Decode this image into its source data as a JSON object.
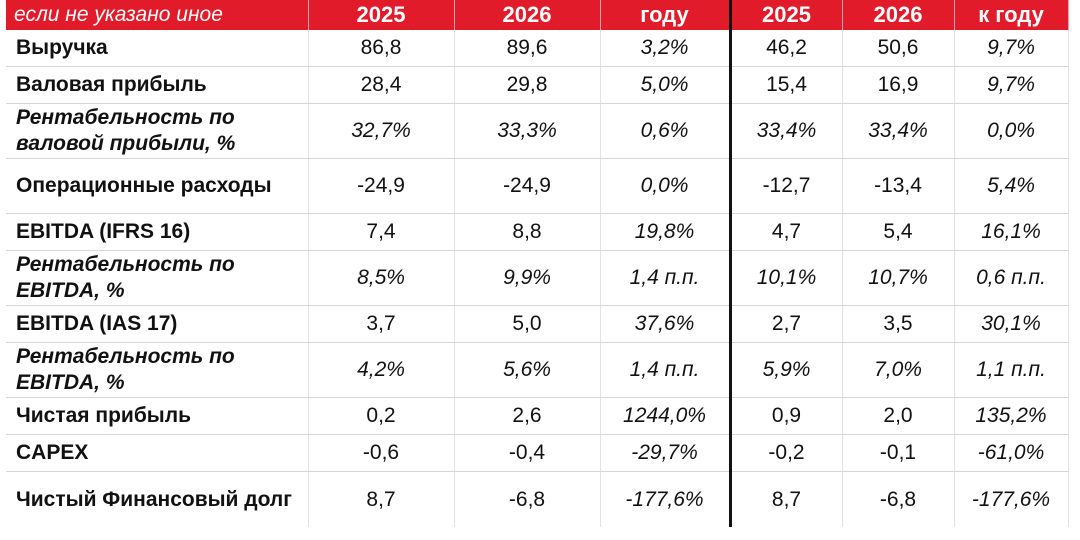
{
  "header": {
    "label": "если не указано иное",
    "columns": [
      "2025",
      "2026",
      "году",
      "2025",
      "2026",
      "к году"
    ]
  },
  "rows": [
    {
      "label": "Выручка",
      "values": [
        "86,8",
        "89,6",
        "3,2%",
        "46,2",
        "50,6",
        "9,7%"
      ]
    },
    {
      "label": "Валовая прибыль",
      "values": [
        "28,4",
        "29,8",
        "5,0%",
        "15,4",
        "16,9",
        "9,7%"
      ]
    },
    {
      "label": "Рентабельность по валовой прибыли, %",
      "values": [
        "32,7%",
        "33,3%",
        "0,6%",
        "33,4%",
        "33,4%",
        "0,0%"
      ]
    },
    {
      "label": "Операционные расходы",
      "values": [
        "-24,9",
        "-24,9",
        "0,0%",
        "-12,7",
        "-13,4",
        "5,4%"
      ]
    },
    {
      "label": "EBITDA (IFRS 16)",
      "values": [
        "7,4",
        "8,8",
        "19,8%",
        "4,7",
        "5,4",
        "16,1%"
      ]
    },
    {
      "label": "Рентабельность по EBITDA, %",
      "values": [
        "8,5%",
        "9,9%",
        "1,4 п.п.",
        "10,1%",
        "10,7%",
        "0,6 п.п."
      ]
    },
    {
      "label": "EBITDA (IAS 17)",
      "values": [
        "3,7",
        "5,0",
        "37,6%",
        "2,7",
        "3,5",
        "30,1%"
      ]
    },
    {
      "label": "Рентабельность по EBITDA, %",
      "values": [
        "4,2%",
        "5,6%",
        "1,4 п.п.",
        "5,9%",
        "7,0%",
        "1,1 п.п."
      ]
    },
    {
      "label": "Чистая прибыль",
      "values": [
        "0,2",
        "2,6",
        "1244,0%",
        "0,9",
        "2,0",
        "135,2%"
      ]
    },
    {
      "label": "CAPEX",
      "values": [
        "-0,6",
        "-0,4",
        "-29,7%",
        "-0,2",
        "-0,1",
        "-61,0%"
      ]
    },
    {
      "label": "Чистый Финансовый долг",
      "values": [
        "8,7",
        "-6,8",
        "-177,6%",
        "8,7",
        "-6,8",
        "-177,6%"
      ]
    }
  ],
  "colors": {
    "header_bg": "#e11b2a",
    "header_text": "#ffffff"
  }
}
